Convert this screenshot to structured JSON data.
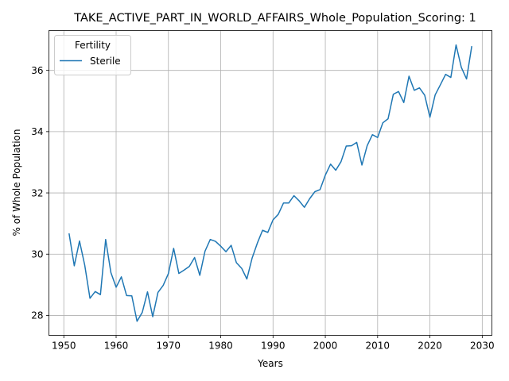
{
  "chart_data": {
    "type": "line",
    "title": "TAKE_ACTIVE_PART_IN_WORLD_AFFAIRS_Whole_Population_Scoring: 1",
    "xlabel": "Years",
    "ylabel": "% of Whole Population",
    "xlim": [
      1947.15,
      2031.85
    ],
    "ylim": [
      27.35,
      37.3
    ],
    "xticks": [
      1950,
      1960,
      1970,
      1980,
      1990,
      2000,
      2010,
      2020,
      2030
    ],
    "yticks": [
      28,
      30,
      32,
      34,
      36
    ],
    "grid": true,
    "legend": {
      "title": "Fertility",
      "placement": "top-left"
    },
    "series": [
      {
        "name": "Sterile",
        "color": "#1f77b4",
        "x": [
          1951,
          1952,
          1953,
          1954,
          1955,
          1956,
          1957,
          1958,
          1959,
          1960,
          1961,
          1962,
          1963,
          1964,
          1965,
          1966,
          1967,
          1968,
          1969,
          1970,
          1971,
          1972,
          1973,
          1974,
          1975,
          1976,
          1977,
          1978,
          1979,
          1980,
          1981,
          1982,
          1983,
          1984,
          1985,
          1986,
          1987,
          1988,
          1989,
          1990,
          1991,
          1992,
          1993,
          1994,
          1995,
          1996,
          1997,
          1998,
          1999,
          2000,
          2001,
          2002,
          2003,
          2004,
          2005,
          2006,
          2007,
          2008,
          2009,
          2010,
          2011,
          2012,
          2013,
          2014,
          2015,
          2016,
          2017,
          2018,
          2019,
          2020,
          2021,
          2022,
          2023,
          2024,
          2025,
          2026,
          2027,
          2028
        ],
        "y": [
          30.68,
          29.62,
          30.43,
          29.64,
          28.56,
          28.78,
          28.68,
          30.48,
          29.4,
          28.92,
          29.26,
          28.65,
          28.64,
          27.81,
          28.1,
          28.77,
          27.96,
          28.75,
          28.98,
          29.37,
          30.19,
          29.37,
          29.48,
          29.6,
          29.89,
          29.31,
          30.1,
          30.48,
          30.42,
          30.26,
          30.08,
          30.29,
          29.72,
          29.54,
          29.19,
          29.87,
          30.36,
          30.78,
          30.71,
          31.12,
          31.3,
          31.67,
          31.67,
          31.91,
          31.74,
          31.53,
          31.81,
          32.04,
          32.11,
          32.58,
          32.94,
          32.74,
          33.02,
          33.53,
          33.54,
          33.65,
          32.91,
          33.54,
          33.9,
          33.81,
          34.29,
          34.42,
          35.22,
          35.31,
          34.95,
          35.81,
          35.35,
          35.43,
          35.19,
          34.47,
          35.2,
          35.53,
          35.87,
          35.77,
          36.83,
          36.1,
          35.72,
          36.79
        ]
      }
    ]
  }
}
